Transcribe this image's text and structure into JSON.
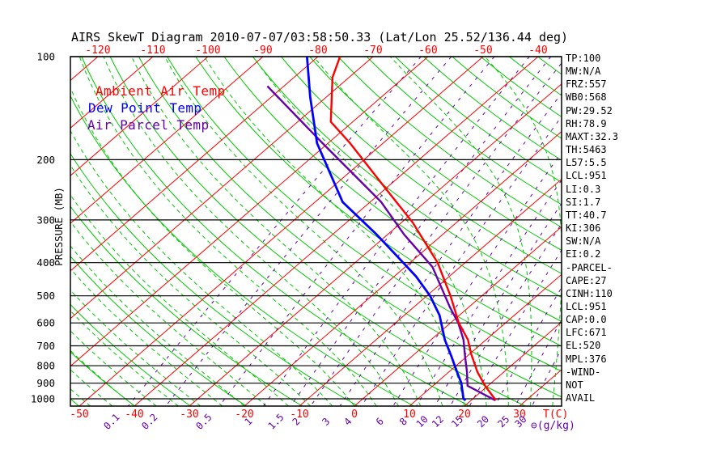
{
  "figure": {
    "title": "AIRS SkewT Diagram 2010-07-07/03:58:50.33 (Lat/Lon 25.52/136.44 deg)"
  },
  "legend": {
    "items": [
      {
        "label": "Ambient Air Temp",
        "color": "#FF0000"
      },
      {
        "label": "Dew Point Temp",
        "color": "#0000FF"
      },
      {
        "label": "Air Parcel Temp",
        "color": "#6600AA"
      }
    ]
  },
  "right_panel": {
    "lines": [
      "TP:100",
      "MW:N/A",
      "FRZ:557",
      "WB0:568",
      "PW:29.52",
      "RH:78.9",
      "MAXT:32.3",
      "TH:5463",
      "L57:5.5",
      "LCL:951",
      "LI:0.3",
      "SI:1.7",
      "TT:40.7",
      "KI:306",
      "SW:N/A",
      "EI:0.2",
      "-PARCEL-",
      "CAPE:27",
      "CINH:110",
      "LCL:951",
      "CAP:0.0",
      "LFC:671",
      "EL:520",
      "MPL:376",
      "-WIND-",
      "NOT",
      "AVAIL"
    ]
  },
  "chart_data": {
    "type": "line",
    "variant": "skew-t-log-p",
    "title": "AIRS SkewT Diagram 2010-07-07/03:58:50.33 (Lat/Lon 25.52/136.44 deg)",
    "xlabel": "T(C)",
    "ylabel": "PRESSURE (MB)",
    "mixing_ratio_unit_label": "⊖(g/kg)",
    "pressure_log_scale": true,
    "pressure_range_mb": [
      100,
      1050
    ],
    "pressure_ticks_mb": [
      100,
      200,
      300,
      400,
      500,
      600,
      700,
      800,
      900,
      1000
    ],
    "top_axis_ticks_C": [
      -120,
      -110,
      -100,
      -90,
      -80,
      -70,
      -60,
      -50,
      -40
    ],
    "bottom_axis_ticks_C": [
      -50,
      -40,
      -30,
      -20,
      -10,
      0,
      10,
      20,
      30
    ],
    "isotherms_C": [
      -140,
      -130,
      -120,
      -110,
      -100,
      -90,
      -80,
      -70,
      -60,
      -50,
      -40,
      -30,
      -20,
      -10,
      0,
      10,
      20,
      30,
      40
    ],
    "dry_adiabats_theta_K": [
      220,
      230,
      240,
      250,
      260,
      270,
      280,
      290,
      300,
      310,
      320,
      330,
      340,
      350,
      360,
      370,
      380,
      390,
      400,
      410,
      420,
      430,
      440,
      450
    ],
    "moist_adiabat_surface_temps_C": [
      -52,
      -48,
      -44,
      -40,
      -36,
      -32,
      -28,
      -24,
      -20,
      -16,
      -12,
      -8,
      -4,
      0,
      4,
      8,
      12,
      16,
      20,
      24,
      28,
      32,
      36,
      40
    ],
    "mixing_ratio_lines_g_per_kg": [
      0.1,
      0.2,
      0.5,
      1,
      1.5,
      2,
      3,
      4,
      6,
      8,
      10,
      12,
      15,
      20,
      25,
      30
    ],
    "grid_colors": {
      "isotherm": "#FF0000",
      "adiabat": "#00C800",
      "mixing_ratio": "#6600AA",
      "pressure_line": "#000000"
    },
    "series": [
      {
        "name": "Ambient Air Temp",
        "color": "#FF0000",
        "points": [
          [
            100,
            -76
          ],
          [
            115,
            -73
          ],
          [
            155,
            -64
          ],
          [
            179,
            -56
          ],
          [
            243,
            -40
          ],
          [
            305,
            -28
          ],
          [
            400,
            -15
          ],
          [
            500,
            -5.7
          ],
          [
            600,
            1.5
          ],
          [
            672,
            6.7
          ],
          [
            740,
            10.3
          ],
          [
            835,
            15.2
          ],
          [
            920,
            19.7
          ],
          [
            1010,
            24.5
          ]
        ]
      },
      {
        "name": "Dew Point Temp",
        "color": "#0000FF",
        "points": [
          [
            100,
            -82
          ],
          [
            131,
            -73
          ],
          [
            179,
            -62
          ],
          [
            266,
            -45
          ],
          [
            331,
            -32
          ],
          [
            381,
            -24
          ],
          [
            439,
            -16
          ],
          [
            500,
            -9.4
          ],
          [
            570,
            -3.6
          ],
          [
            672,
            2.5
          ],
          [
            750,
            7.1
          ],
          [
            835,
            11.5
          ],
          [
            897,
            14.5
          ],
          [
            1000,
            18.3
          ],
          [
            1010,
            19.0
          ]
        ]
      },
      {
        "name": "Air Parcel Temp",
        "color": "#6600AA",
        "points": [
          [
            122,
            -83
          ],
          [
            179,
            -61
          ],
          [
            266,
            -38
          ],
          [
            331,
            -27
          ],
          [
            412,
            -15
          ],
          [
            540,
            -3.4
          ],
          [
            600,
            1.4
          ],
          [
            672,
            5.9
          ],
          [
            750,
            9.6
          ],
          [
            835,
            13.3
          ],
          [
            916,
            16.3
          ],
          [
            1010,
            24.4
          ]
        ]
      }
    ]
  }
}
